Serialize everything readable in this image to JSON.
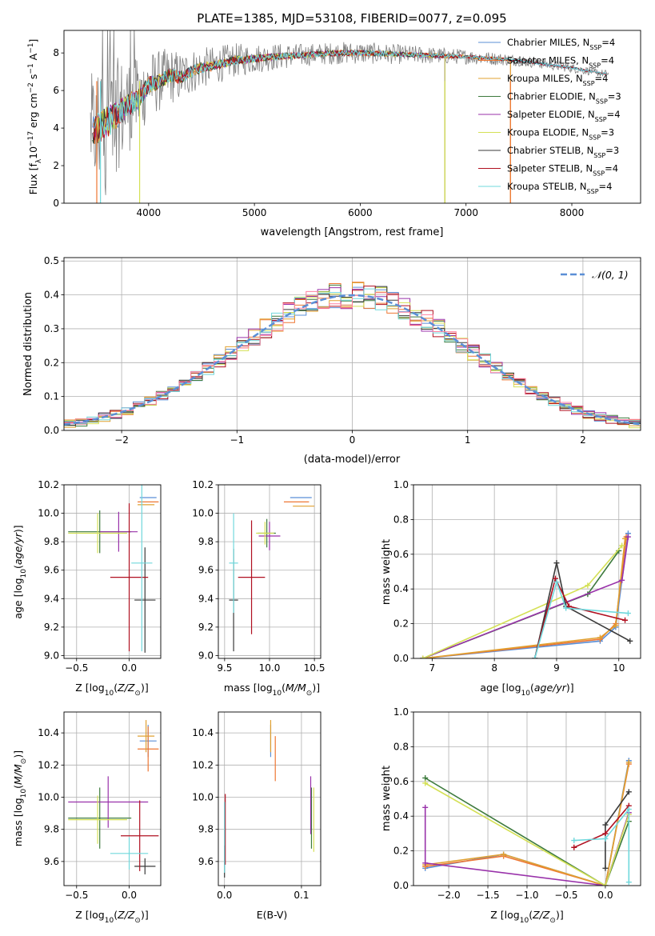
{
  "figure_title": "PLATE=1385, MJD=53108, FIBERID=0077, z=0.095",
  "colors": {
    "Chabrier MILES": "#5b8fd6",
    "Salpeter MILES": "#ee7733",
    "Kroupa MILES": "#e0a030",
    "Chabrier ELODIE": "#3d7a3d",
    "Salpeter ELODIE": "#9932aa",
    "Kroupa ELODIE": "#d4e055",
    "Chabrier STELIB": "#3a3a3a",
    "Salpeter STELIB": "#b01020",
    "Kroupa STELIB": "#70d8dc",
    "data": "#808080",
    "normal": "#5b8fd6",
    "extra_hist": "#ff80a0"
  },
  "chart_data": [
    {
      "type": "line",
      "panel": "spectrum",
      "title": "PLATE=1385, MJD=53108, FIBERID=0077, z=0.095",
      "xlabel": "wavelength [Angstrom, rest frame]",
      "ylabel_parts": [
        "Flux [f",
        "λ",
        "10",
        "−17",
        " erg cm",
        "−2",
        " s",
        "−1",
        " A",
        "−1",
        "]"
      ],
      "xlim": [
        3200,
        8650
      ],
      "ylim": [
        0,
        9.2
      ],
      "xticks": [
        4000,
        5000,
        6000,
        7000,
        8000
      ],
      "yticks": [
        0,
        2,
        4,
        6,
        8
      ],
      "legend": [
        {
          "label": "Chabrier MILES, N",
          "sub": "SSP",
          "suffix": "=4"
        },
        {
          "label": "Salpeter MILES, N",
          "sub": "SSP",
          "suffix": "=4"
        },
        {
          "label": "Kroupa MILES, N",
          "sub": "SSP",
          "suffix": "=4"
        },
        {
          "label": "Chabrier ELODIE, N",
          "sub": "SSP",
          "suffix": "=3"
        },
        {
          "label": "Salpeter ELODIE, N",
          "sub": "SSP",
          "suffix": "=4"
        },
        {
          "label": "Kroupa ELODIE, N",
          "sub": "SSP",
          "suffix": "=3"
        },
        {
          "label": "Chabrier STELIB, N",
          "sub": "SSP",
          "suffix": "=3"
        },
        {
          "label": "Salpeter STELIB, N",
          "sub": "SSP",
          "suffix": "=4"
        },
        {
          "label": "Kroupa STELIB, N",
          "sub": "SSP",
          "suffix": "=4"
        }
      ],
      "continuum": {
        "x": [
          3500,
          3600,
          3700,
          3800,
          3900,
          4000,
          4100,
          4200,
          4300,
          4400,
          4500,
          4600,
          4800,
          5000,
          5200,
          5500,
          5800,
          6000,
          6500,
          7000,
          7500,
          8000,
          8300
        ],
        "y": [
          3.9,
          4.3,
          4.7,
          5.2,
          5.5,
          6.3,
          6.5,
          6.8,
          6.7,
          7.0,
          7.2,
          7.3,
          7.6,
          7.7,
          7.8,
          7.9,
          8.0,
          8.0,
          7.9,
          7.8,
          7.6,
          7.2,
          6.9
        ]
      },
      "noise_amplitude": {
        "x": [
          3450,
          3600,
          3800,
          4000,
          4500,
          5000,
          5500,
          6000,
          6500,
          7000,
          7500,
          8000,
          8350
        ],
        "y": [
          3.0,
          3.5,
          2.6,
          1.8,
          1.1,
          0.8,
          0.6,
          0.6,
          0.5,
          0.4,
          0.3,
          0.25,
          0.2
        ]
      }
    },
    {
      "type": "histogram",
      "panel": "residuals",
      "xlabel": "(data-model)/error",
      "ylabel": "Normed distribution",
      "xlim": [
        -2.5,
        2.5
      ],
      "ylim": [
        0,
        0.51
      ],
      "xticks": [
        -2,
        -1,
        0,
        1,
        2
      ],
      "yticks": [
        0.0,
        0.1,
        0.2,
        0.3,
        0.4,
        0.5
      ],
      "legend": [
        "𝒩(0, 1)"
      ],
      "bins": {
        "start": -2.5,
        "width": 0.1,
        "count": 50
      }
    },
    {
      "type": "scatter",
      "panel": "age-vs-Z",
      "xlabel": "Z [log10(Z/Z⊙)]",
      "ylabel": "age  [log10(age/yr)]",
      "xlim": [
        -0.62,
        0.3
      ],
      "ylim": [
        8.98,
        10.2
      ],
      "xticks": [
        -0.5,
        0.0
      ],
      "yticks": [
        9.0,
        9.2,
        9.4,
        9.6,
        9.8,
        10.0,
        10.2
      ],
      "points": [
        {
          "series": "Chabrier MILES",
          "x": 0.18,
          "y": 10.11,
          "xerr": 0.08,
          "yerr": 0.0
        },
        {
          "series": "Salpeter MILES",
          "x": 0.18,
          "y": 10.08,
          "xerr": 0.1,
          "yerr": 0.0
        },
        {
          "series": "Kroupa MILES",
          "x": 0.16,
          "y": 10.06,
          "xerr": 0.08,
          "yerr": 0.0
        },
        {
          "series": "Chabrier ELODIE",
          "x": -0.28,
          "y": 9.87,
          "xerr": 0.3,
          "yerr": 0.15
        },
        {
          "series": "Salpeter ELODIE",
          "x": -0.1,
          "y": 9.87,
          "xerr": 0.18,
          "yerr": 0.14
        },
        {
          "series": "Kroupa ELODIE",
          "x": -0.3,
          "y": 9.86,
          "xerr": 0.28,
          "yerr": 0.14
        },
        {
          "series": "Chabrier STELIB",
          "x": 0.15,
          "y": 9.39,
          "xerr": 0.1,
          "yerr": 0.37
        },
        {
          "series": "Salpeter STELIB",
          "x": 0.0,
          "y": 9.55,
          "xerr": 0.18,
          "yerr": 0.52
        },
        {
          "series": "Kroupa STELIB",
          "x": 0.12,
          "y": 9.65,
          "xerr": 0.1,
          "yerr": 0.62
        }
      ]
    },
    {
      "type": "scatter",
      "panel": "age-vs-mass",
      "xlabel": "mass [log10(M/M⊙)]",
      "ylabel": "",
      "xlim": [
        9.43,
        10.57
      ],
      "ylim": [
        8.98,
        10.2
      ],
      "xticks": [
        9.5,
        10.0,
        10.5
      ],
      "yticks": [
        9.0,
        9.2,
        9.4,
        9.6,
        9.8,
        10.0,
        10.2
      ],
      "points": [
        {
          "series": "Chabrier MILES",
          "x": 10.35,
          "y": 10.11,
          "xerr": 0.12,
          "yerr": 0.0
        },
        {
          "series": "Salpeter MILES",
          "x": 10.3,
          "y": 10.08,
          "xerr": 0.14,
          "yerr": 0.0
        },
        {
          "series": "Kroupa MILES",
          "x": 10.38,
          "y": 10.05,
          "xerr": 0.12,
          "yerr": 0.0
        },
        {
          "series": "Chabrier ELODIE",
          "x": 9.97,
          "y": 9.86,
          "xerr": 0.1,
          "yerr": 0.1
        },
        {
          "series": "Salpeter ELODIE",
          "x": 10.0,
          "y": 9.84,
          "xerr": 0.12,
          "yerr": 0.1
        },
        {
          "series": "Kroupa ELODIE",
          "x": 9.95,
          "y": 9.86,
          "xerr": 0.1,
          "yerr": 0.08
        },
        {
          "series": "Chabrier STELIB",
          "x": 9.6,
          "y": 9.39,
          "xerr": 0.05,
          "yerr": 0.36
        },
        {
          "series": "Salpeter STELIB",
          "x": 9.8,
          "y": 9.55,
          "xerr": 0.15,
          "yerr": 0.4
        },
        {
          "series": "Kroupa STELIB",
          "x": 9.6,
          "y": 9.65,
          "xerr": 0.05,
          "yerr": 0.35
        }
      ]
    },
    {
      "type": "line",
      "panel": "weight-vs-age",
      "xlabel": "age  [log10(age/yr)]",
      "ylabel": "mass weight",
      "xlim": [
        6.7,
        10.35
      ],
      "ylim": [
        0,
        1.0
      ],
      "xticks": [
        7,
        8,
        9,
        10
      ],
      "yticks": [
        0.0,
        0.2,
        0.4,
        0.6,
        0.8,
        1.0
      ],
      "series": [
        {
          "name": "Chabrier MILES",
          "x": [
            6.85,
            9.7,
            9.95,
            10.15
          ],
          "y": [
            0.0,
            0.1,
            0.18,
            0.72
          ]
        },
        {
          "name": "Salpeter MILES",
          "x": [
            6.85,
            9.7,
            9.95,
            10.12
          ],
          "y": [
            0.0,
            0.11,
            0.2,
            0.7
          ]
        },
        {
          "name": "Kroupa MILES",
          "x": [
            6.85,
            9.7,
            9.95,
            10.1
          ],
          "y": [
            0.0,
            0.12,
            0.19,
            0.69
          ]
        },
        {
          "name": "Chabrier ELODIE",
          "x": [
            6.85,
            9.5,
            10.0
          ],
          "y": [
            0.0,
            0.37,
            0.62
          ]
        },
        {
          "name": "Salpeter ELODIE",
          "x": [
            6.85,
            10.05,
            10.15
          ],
          "y": [
            0.0,
            0.45,
            0.7
          ]
        },
        {
          "name": "Kroupa ELODIE",
          "x": [
            6.85,
            9.5,
            10.05
          ],
          "y": [
            0.0,
            0.42,
            0.65
          ]
        },
        {
          "name": "Chabrier STELIB",
          "x": [
            8.65,
            9.0,
            9.15,
            10.18
          ],
          "y": [
            0.0,
            0.55,
            0.3,
            0.1
          ]
        },
        {
          "name": "Salpeter STELIB",
          "x": [
            8.65,
            8.98,
            9.2,
            10.1
          ],
          "y": [
            0.0,
            0.46,
            0.3,
            0.22
          ]
        },
        {
          "name": "Kroupa STELIB",
          "x": [
            8.65,
            9.0,
            9.15,
            10.15
          ],
          "y": [
            0.0,
            0.44,
            0.29,
            0.26
          ]
        }
      ]
    },
    {
      "type": "scatter",
      "panel": "mass-vs-Z",
      "xlabel": "Z [log10(Z/Z⊙)]",
      "ylabel": "mass [log10(M/M⊙)]",
      "xlim": [
        -0.62,
        0.3
      ],
      "ylim": [
        9.45,
        10.53
      ],
      "xticks": [
        -0.5,
        0.0
      ],
      "yticks": [
        9.6,
        9.8,
        10.0,
        10.2,
        10.4
      ],
      "points": [
        {
          "series": "Chabrier MILES",
          "x": 0.18,
          "y": 10.35,
          "xerr": 0.08,
          "yerr": 0.1
        },
        {
          "series": "Salpeter MILES",
          "x": 0.18,
          "y": 10.3,
          "xerr": 0.1,
          "yerr": 0.14
        },
        {
          "series": "Kroupa MILES",
          "x": 0.16,
          "y": 10.38,
          "xerr": 0.08,
          "yerr": 0.1
        },
        {
          "series": "Chabrier ELODIE",
          "x": -0.28,
          "y": 9.87,
          "xerr": 0.3,
          "yerr": 0.19
        },
        {
          "series": "Salpeter ELODIE",
          "x": -0.2,
          "y": 9.97,
          "xerr": 0.38,
          "yerr": 0.16
        },
        {
          "series": "Kroupa ELODIE",
          "x": -0.3,
          "y": 9.86,
          "xerr": 0.28,
          "yerr": 0.15
        },
        {
          "series": "Chabrier STELIB",
          "x": 0.15,
          "y": 9.57,
          "xerr": 0.1,
          "yerr": 0.05
        },
        {
          "series": "Salpeter STELIB",
          "x": 0.1,
          "y": 9.76,
          "xerr": 0.18,
          "yerr": 0.22
        },
        {
          "series": "Kroupa STELIB",
          "x": 0.0,
          "y": 9.65,
          "xerr": 0.18,
          "yerr": 0.1
        }
      ]
    },
    {
      "type": "scatter",
      "panel": "mass-vs-EBV",
      "xlabel": "E(B-V)",
      "ylabel": "",
      "xlim": [
        -0.008,
        0.125
      ],
      "ylim": [
        9.45,
        10.53
      ],
      "xticks": [
        0.0,
        0.1
      ],
      "yticks": [
        9.6,
        9.8,
        10.0,
        10.2,
        10.4
      ],
      "points": [
        {
          "series": "Chabrier MILES",
          "x": 0.06,
          "y": 10.35,
          "yerr": 0.1
        },
        {
          "series": "Salpeter MILES",
          "x": 0.066,
          "y": 10.24,
          "yerr": 0.14
        },
        {
          "series": "Kroupa MILES",
          "x": 0.06,
          "y": 10.38,
          "yerr": 0.1
        },
        {
          "series": "Chabrier ELODIE",
          "x": 0.113,
          "y": 9.87,
          "yerr": 0.19
        },
        {
          "series": "Salpeter ELODIE",
          "x": 0.112,
          "y": 9.95,
          "yerr": 0.18
        },
        {
          "series": "Kroupa ELODIE",
          "x": 0.116,
          "y": 9.86,
          "yerr": 0.2
        },
        {
          "series": "Chabrier STELIB",
          "x": 0.0,
          "y": 9.6,
          "yerr": 0.1
        },
        {
          "series": "Salpeter STELIB",
          "x": 0.001,
          "y": 9.8,
          "yerr": 0.22
        },
        {
          "series": "Kroupa STELIB",
          "x": 0.0,
          "y": 9.75,
          "yerr": 0.22
        }
      ]
    },
    {
      "type": "line",
      "panel": "weight-vs-Z",
      "xlabel": "Z [log10(Z/Z⊙)]",
      "ylabel": "mass weight",
      "xlim": [
        -2.45,
        0.45
      ],
      "ylim": [
        0,
        1.0
      ],
      "xticks": [
        -2.0,
        -1.5,
        -1.0,
        -0.5,
        0.0
      ],
      "yticks": [
        0.0,
        0.2,
        0.4,
        0.6,
        0.8,
        1.0
      ],
      "series": [
        {
          "name": "Chabrier MILES",
          "x": [
            -2.3,
            -1.3,
            0.0,
            0.3
          ],
          "y": [
            0.1,
            0.18,
            0.0,
            0.72
          ]
        },
        {
          "name": "Salpeter MILES",
          "x": [
            -2.3,
            -1.3,
            0.0,
            0.3
          ],
          "y": [
            0.11,
            0.17,
            0.0,
            0.7
          ]
        },
        {
          "name": "Kroupa MILES",
          "x": [
            -2.3,
            -1.3,
            0.0,
            0.3
          ],
          "y": [
            0.12,
            0.18,
            0.0,
            0.71
          ]
        },
        {
          "name": "Chabrier ELODIE",
          "x": [
            -2.3,
            0.0,
            0.3
          ],
          "y": [
            0.62,
            0.0,
            0.37
          ]
        },
        {
          "name": "Salpeter ELODIE",
          "x": [
            -2.3,
            -2.3,
            0.0,
            0.3
          ],
          "y": [
            0.45,
            0.13,
            0.0,
            0.42
          ]
        },
        {
          "name": "Kroupa ELODIE",
          "x": [
            -2.3,
            0.0,
            0.3
          ],
          "y": [
            0.59,
            0.0,
            0.41
          ]
        },
        {
          "name": "Chabrier STELIB",
          "x": [
            0.0,
            0.0,
            0.3
          ],
          "y": [
            0.1,
            0.35,
            0.54
          ]
        },
        {
          "name": "Salpeter STELIB",
          "x": [
            -0.4,
            0.0,
            0.3
          ],
          "y": [
            0.22,
            0.3,
            0.46
          ]
        },
        {
          "name": "Kroupa STELIB",
          "x": [
            -0.4,
            0.0,
            0.3,
            0.3
          ],
          "y": [
            0.26,
            0.27,
            0.44,
            0.02
          ]
        }
      ]
    }
  ]
}
